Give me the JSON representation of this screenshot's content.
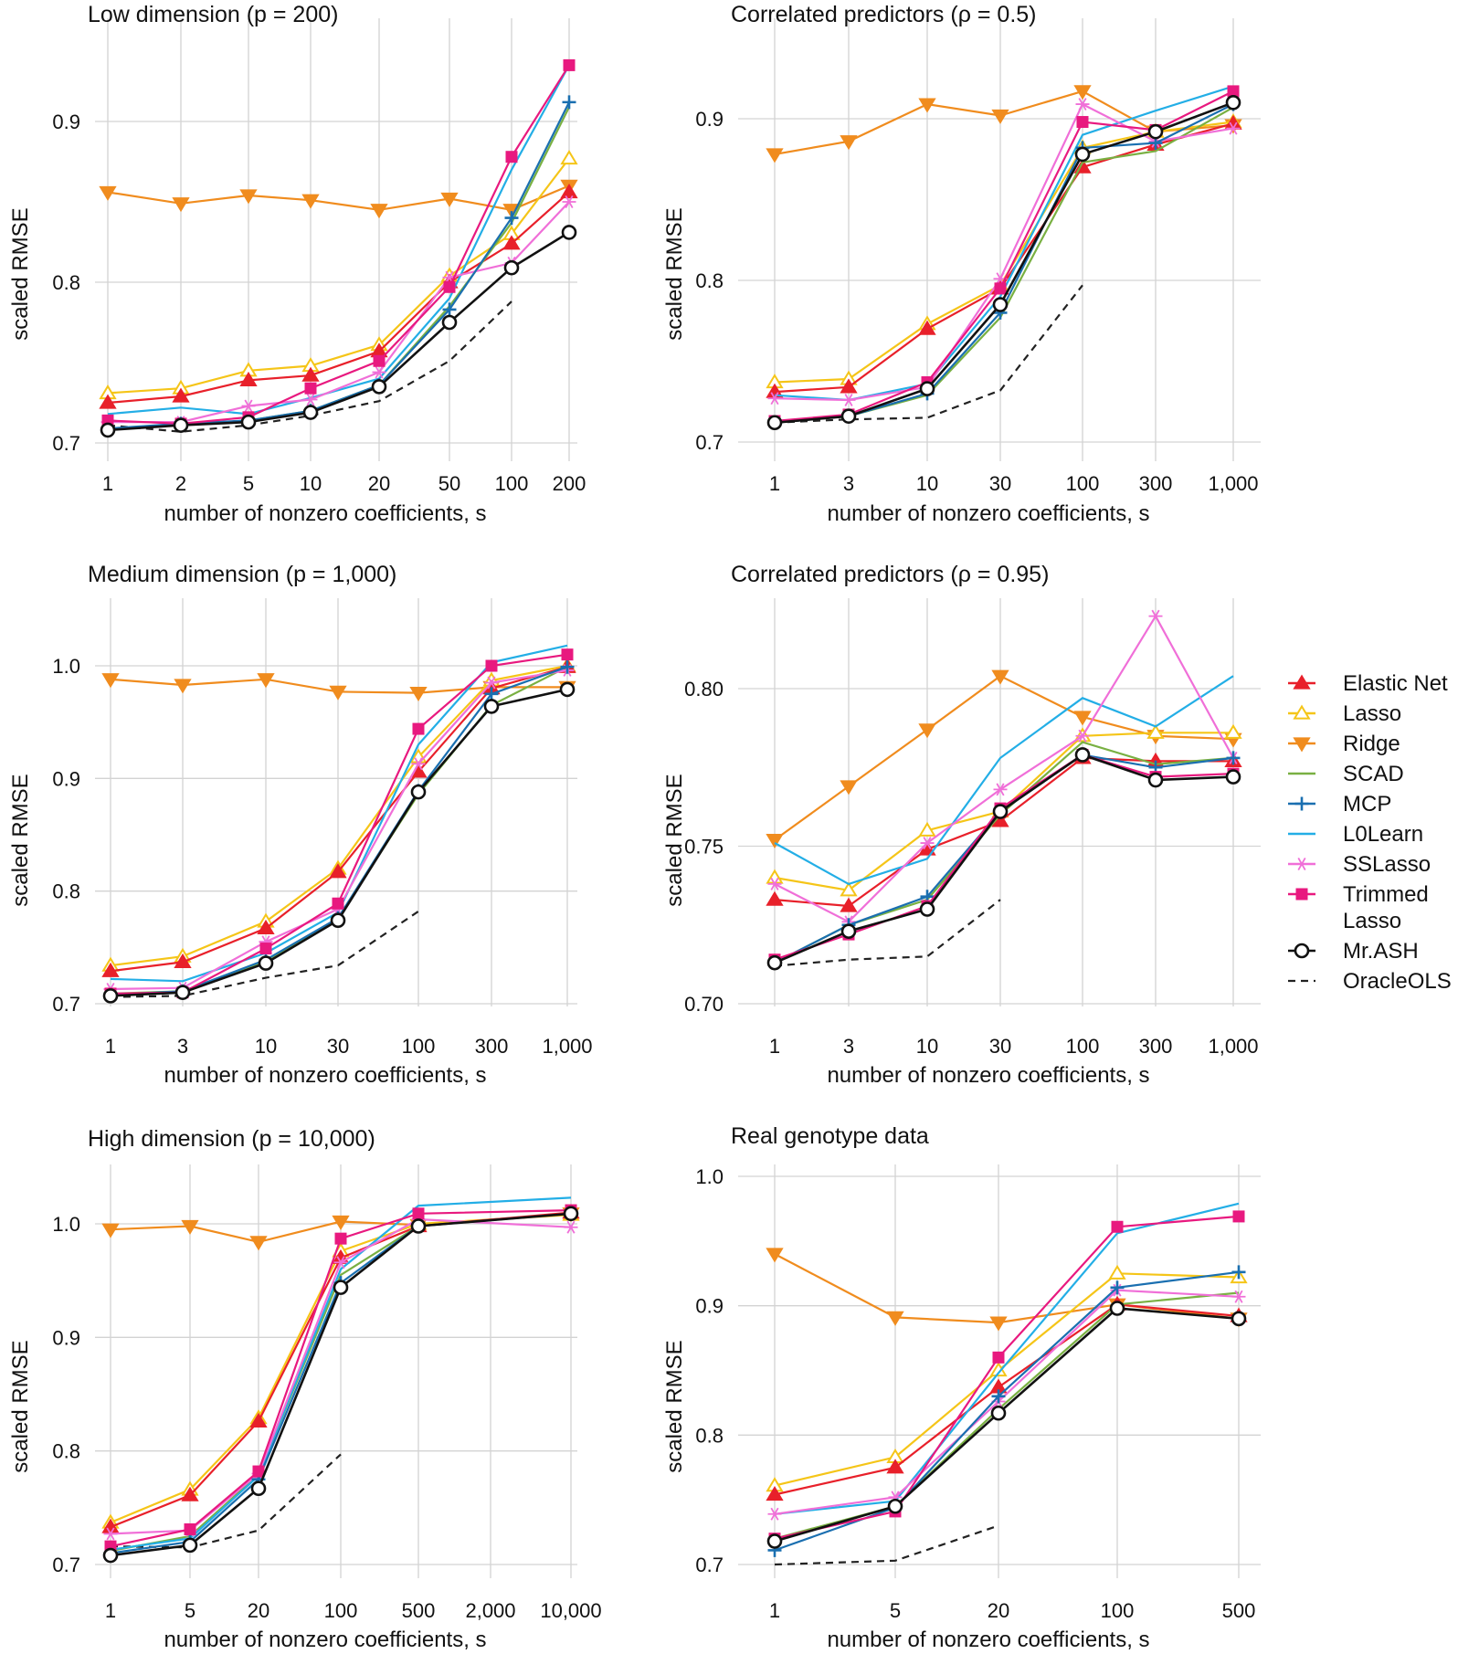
{
  "legend": [
    {
      "name": "Elastic Net",
      "color": "#e8202a",
      "marker": "tri-up-filled"
    },
    {
      "name": "Lasso",
      "color": "#f5c518",
      "marker": "tri-up-open"
    },
    {
      "name": "Ridge",
      "color": "#f08c1e",
      "marker": "tri-down-filled"
    },
    {
      "name": "SCAD",
      "color": "#79b042",
      "marker": "none"
    },
    {
      "name": "MCP",
      "color": "#1a6fb0",
      "marker": "plus"
    },
    {
      "name": "L0Learn",
      "color": "#23aee6",
      "marker": "none"
    },
    {
      "name": "SSLasso",
      "color": "#f06fd8",
      "marker": "asterisk"
    },
    {
      "name": "Trimmed\nLasso",
      "color": "#e8197f",
      "marker": "square"
    },
    {
      "name": "Mr.ASH",
      "color": "#111111",
      "marker": "circle-open"
    },
    {
      "name": "OracleOLS",
      "color": "#222222",
      "marker": "dashed"
    }
  ],
  "chart_data": [
    {
      "type": "line",
      "title": "Low dimension (p = 200)",
      "xlabel": "number of nonzero coefficients, s",
      "ylabel": "scaled RMSE",
      "categories": [
        "1",
        "2",
        "5",
        "10",
        "20",
        "50",
        "100",
        "200"
      ],
      "ylim": [
        0.7,
        0.94
      ],
      "yticks": [
        0.7,
        0.8,
        0.9
      ],
      "ytick_labels": [
        "0.7",
        "0.8",
        "0.9"
      ],
      "series": [
        {
          "name": "Elastic Net",
          "values": [
            0.725,
            0.729,
            0.739,
            0.742,
            0.757,
            0.8,
            0.824,
            0.856
          ]
        },
        {
          "name": "Lasso",
          "values": [
            0.731,
            0.734,
            0.745,
            0.748,
            0.761,
            0.804,
            0.83,
            0.877
          ]
        },
        {
          "name": "Ridge",
          "values": [
            0.856,
            0.849,
            0.854,
            0.851,
            0.845,
            0.852,
            0.845,
            0.86
          ]
        },
        {
          "name": "SCAD",
          "values": [
            0.709,
            0.711,
            0.714,
            0.72,
            0.736,
            0.785,
            0.837,
            0.909
          ]
        },
        {
          "name": "MCP",
          "values": [
            0.709,
            0.712,
            0.714,
            0.72,
            0.736,
            0.783,
            0.84,
            0.912
          ]
        },
        {
          "name": "L0Learn",
          "values": [
            0.718,
            0.722,
            0.718,
            0.728,
            0.74,
            0.79,
            0.87,
            0.935
          ]
        },
        {
          "name": "SSLasso",
          "values": [
            0.713,
            0.713,
            0.723,
            0.727,
            0.744,
            0.803,
            0.812,
            0.85
          ]
        },
        {
          "name": "Trimmed Lasso",
          "values": [
            0.714,
            0.712,
            0.716,
            0.734,
            0.751,
            0.797,
            0.878,
            0.935
          ]
        },
        {
          "name": "Mr.ASH",
          "values": [
            0.708,
            0.711,
            0.713,
            0.719,
            0.735,
            0.775,
            0.809,
            0.831
          ]
        },
        {
          "name": "OracleOLS",
          "values": [
            0.711,
            0.707,
            0.711,
            0.717,
            0.726,
            0.751,
            0.788,
            null
          ]
        }
      ]
    },
    {
      "type": "line",
      "title": "Correlated predictors (ρ = 0.5)",
      "xlabel": "number of nonzero coefficients, s",
      "ylabel": "scaled RMSE",
      "categories": [
        "1",
        "3",
        "10",
        "30",
        "100",
        "300",
        "1,000"
      ],
      "ylim": [
        0.7,
        0.95
      ],
      "yticks": [
        0.7,
        0.8,
        0.9
      ],
      "ytick_labels": [
        "0.7",
        "0.8",
        "0.9"
      ],
      "series": [
        {
          "name": "Elastic Net",
          "values": [
            0.731,
            0.734,
            0.77,
            0.795,
            0.87,
            0.884,
            0.897
          ]
        },
        {
          "name": "Lasso",
          "values": [
            0.737,
            0.739,
            0.773,
            0.797,
            0.882,
            0.892,
            0.898
          ]
        },
        {
          "name": "Ridge",
          "values": [
            0.878,
            0.886,
            0.909,
            0.902,
            0.917,
            0.892,
            0.896
          ]
        },
        {
          "name": "SCAD",
          "values": [
            0.712,
            0.716,
            0.729,
            0.777,
            0.873,
            0.88,
            0.907
          ]
        },
        {
          "name": "MCP",
          "values": [
            0.712,
            0.716,
            0.73,
            0.78,
            0.882,
            0.885,
            0.909
          ]
        },
        {
          "name": "L0Learn",
          "values": [
            0.729,
            0.726,
            0.736,
            0.79,
            0.89,
            0.905,
            0.92
          ]
        },
        {
          "name": "SSLasso",
          "values": [
            0.727,
            0.726,
            0.734,
            0.801,
            0.909,
            0.886,
            0.894
          ]
        },
        {
          "name": "Trimmed Lasso",
          "values": [
            0.713,
            0.717,
            0.737,
            0.795,
            0.898,
            0.893,
            0.917
          ]
        },
        {
          "name": "Mr.ASH",
          "values": [
            0.712,
            0.716,
            0.733,
            0.785,
            0.878,
            0.892,
            0.91
          ]
        },
        {
          "name": "OracleOLS",
          "values": [
            0.712,
            0.714,
            0.715,
            0.732,
            0.797,
            null,
            null
          ]
        }
      ]
    },
    {
      "type": "line",
      "title": "Medium dimension (p = 1,000)",
      "xlabel": "number of nonzero coefficients, s",
      "ylabel": "scaled RMSE",
      "categories": [
        "1",
        "3",
        "10",
        "30",
        "100",
        "300",
        "1,000"
      ],
      "ylim": [
        0.7,
        1.04
      ],
      "yticks": [
        0.7,
        0.8,
        0.9,
        1.0
      ],
      "ytick_labels": [
        "0.7",
        "0.8",
        "0.9",
        "1.0"
      ],
      "series": [
        {
          "name": "Elastic Net",
          "values": [
            0.729,
            0.737,
            0.767,
            0.817,
            0.906,
            0.98,
            0.999
          ]
        },
        {
          "name": "Lasso",
          "values": [
            0.734,
            0.742,
            0.773,
            0.82,
            0.919,
            0.987,
            1.0
          ]
        },
        {
          "name": "Ridge",
          "values": [
            0.988,
            0.983,
            0.988,
            0.977,
            0.976,
            0.981,
            0.981
          ]
        },
        {
          "name": "SCAD",
          "values": [
            0.709,
            0.711,
            0.737,
            0.776,
            0.886,
            0.965,
            0.999
          ]
        },
        {
          "name": "MCP",
          "values": [
            0.708,
            0.711,
            0.739,
            0.776,
            0.889,
            0.975,
            0.999
          ]
        },
        {
          "name": "L0Learn",
          "values": [
            0.722,
            0.72,
            0.745,
            0.781,
            0.93,
            1.003,
            1.018
          ]
        },
        {
          "name": "SSLasso",
          "values": [
            0.713,
            0.714,
            0.755,
            0.784,
            0.913,
            0.985,
            0.996
          ]
        },
        {
          "name": "Trimmed Lasso",
          "values": [
            0.709,
            0.71,
            0.749,
            0.789,
            0.944,
            1.0,
            1.01
          ]
        },
        {
          "name": "Mr.ASH",
          "values": [
            0.707,
            0.71,
            0.736,
            0.774,
            0.888,
            0.964,
            0.979
          ]
        },
        {
          "name": "OracleOLS",
          "values": [
            0.706,
            0.707,
            0.723,
            0.734,
            0.782,
            null,
            null
          ]
        }
      ]
    },
    {
      "type": "line",
      "title": "Correlated predictors (ρ = 0.95)",
      "xlabel": "number of nonzero coefficients, s",
      "ylabel": "scaled RMSE",
      "categories": [
        "1",
        "3",
        "10",
        "30",
        "100",
        "300",
        "1,000"
      ],
      "ylim": [
        0.7,
        0.823
      ],
      "yticks": [
        0.7,
        0.75,
        0.8
      ],
      "ytick_labels": [
        "0.70",
        "0.75",
        "0.80"
      ],
      "series": [
        {
          "name": "Elastic Net",
          "values": [
            0.733,
            0.731,
            0.749,
            0.758,
            0.778,
            0.777,
            0.777
          ]
        },
        {
          "name": "Lasso",
          "values": [
            0.74,
            0.736,
            0.755,
            0.761,
            0.785,
            0.786,
            0.786
          ]
        },
        {
          "name": "Ridge",
          "values": [
            0.752,
            0.769,
            0.787,
            0.804,
            0.791,
            0.785,
            0.784
          ]
        },
        {
          "name": "SCAD",
          "values": [
            0.713,
            0.725,
            0.733,
            0.76,
            0.783,
            0.776,
            0.778
          ]
        },
        {
          "name": "MCP",
          "values": [
            0.713,
            0.725,
            0.734,
            0.761,
            0.779,
            0.775,
            0.778
          ]
        },
        {
          "name": "L0Learn",
          "values": [
            0.751,
            0.738,
            0.746,
            0.778,
            0.797,
            0.788,
            0.804
          ]
        },
        {
          "name": "SSLasso",
          "values": [
            0.738,
            0.726,
            0.751,
            0.768,
            0.785,
            0.823,
            0.778
          ]
        },
        {
          "name": "Trimmed Lasso",
          "values": [
            0.714,
            0.722,
            0.731,
            0.762,
            0.779,
            0.772,
            0.773
          ]
        },
        {
          "name": "Mr.ASH",
          "values": [
            0.713,
            0.723,
            0.73,
            0.761,
            0.779,
            0.771,
            0.772
          ]
        },
        {
          "name": "OracleOLS",
          "values": [
            0.712,
            0.714,
            0.715,
            0.733,
            null,
            null,
            null
          ]
        }
      ]
    },
    {
      "type": "line",
      "title": "High dimension (p = 10,000)",
      "xlabel": "number of nonzero coefficients, s",
      "ylabel": "scaled RMSE",
      "categories": [
        "1",
        "5",
        "20",
        "100",
        "500",
        "2,000",
        "10,000"
      ],
      "ylim": [
        0.7,
        1.04
      ],
      "yticks": [
        0.7,
        0.8,
        0.9,
        1.0
      ],
      "ytick_labels": [
        "0.7",
        "0.8",
        "0.9",
        "1.0"
      ],
      "series": [
        {
          "name": "Elastic Net",
          "values": [
            0.733,
            0.761,
            0.826,
            0.97,
            0.998,
            null,
            1.01
          ]
        },
        {
          "name": "Lasso",
          "values": [
            0.737,
            0.766,
            0.829,
            0.976,
            1.0,
            null,
            1.008
          ]
        },
        {
          "name": "Ridge",
          "values": [
            0.995,
            0.998,
            0.984,
            1.002,
            0.999,
            null,
            1.009
          ]
        },
        {
          "name": "SCAD",
          "values": [
            0.712,
            0.725,
            0.779,
            0.955,
            0.998,
            null,
            1.009
          ]
        },
        {
          "name": "MCP",
          "values": [
            0.71,
            0.72,
            0.775,
            0.948,
            0.998,
            null,
            1.009
          ]
        },
        {
          "name": "L0Learn",
          "values": [
            0.713,
            0.723,
            0.778,
            0.96,
            1.016,
            null,
            1.023
          ]
        },
        {
          "name": "SSLasso",
          "values": [
            0.727,
            0.73,
            0.78,
            0.966,
            1.004,
            null,
            0.997
          ]
        },
        {
          "name": "Trimmed Lasso",
          "values": [
            0.716,
            0.731,
            0.782,
            0.987,
            1.009,
            null,
            1.012
          ]
        },
        {
          "name": "Mr.ASH",
          "values": [
            0.708,
            0.717,
            0.767,
            0.944,
            0.998,
            null,
            1.009
          ]
        },
        {
          "name": "OracleOLS",
          "values": [
            0.716,
            0.715,
            0.73,
            0.797,
            null,
            null,
            null
          ]
        }
      ]
    },
    {
      "type": "line",
      "title": "Real genotype data",
      "xlabel": "number of nonzero coefficients, s",
      "ylabel": "scaled RMSE",
      "categories": [
        "1",
        "5",
        "20",
        "100",
        "500"
      ],
      "ylim": [
        0.7,
        1.01
      ],
      "yticks": [
        0.7,
        0.8,
        0.9,
        1.0
      ],
      "ytick_labels": [
        "0.7",
        "0.8",
        "0.9",
        "1.0"
      ],
      "series": [
        {
          "name": "Elastic Net",
          "values": [
            0.754,
            0.775,
            0.837,
            0.901,
            0.892
          ]
        },
        {
          "name": "Lasso",
          "values": [
            0.761,
            0.783,
            0.85,
            0.925,
            0.922
          ]
        },
        {
          "name": "Ridge",
          "values": [
            0.94,
            0.891,
            0.887,
            0.901,
            0.89
          ]
        },
        {
          "name": "SCAD",
          "values": [
            0.72,
            0.745,
            0.82,
            0.901,
            0.91
          ]
        },
        {
          "name": "MCP",
          "values": [
            0.711,
            0.744,
            0.83,
            0.914,
            0.926
          ]
        },
        {
          "name": "L0Learn",
          "values": [
            0.739,
            0.749,
            0.848,
            0.956,
            0.979
          ]
        },
        {
          "name": "SSLasso",
          "values": [
            0.739,
            0.752,
            0.826,
            0.912,
            0.907
          ]
        },
        {
          "name": "Trimmed Lasso",
          "values": [
            0.72,
            0.741,
            0.86,
            0.961,
            0.969
          ]
        },
        {
          "name": "Mr.ASH",
          "values": [
            0.718,
            0.745,
            0.817,
            0.898,
            0.89
          ]
        },
        {
          "name": "OracleOLS",
          "values": [
            0.7,
            0.703,
            0.73,
            null,
            null
          ]
        }
      ]
    }
  ]
}
